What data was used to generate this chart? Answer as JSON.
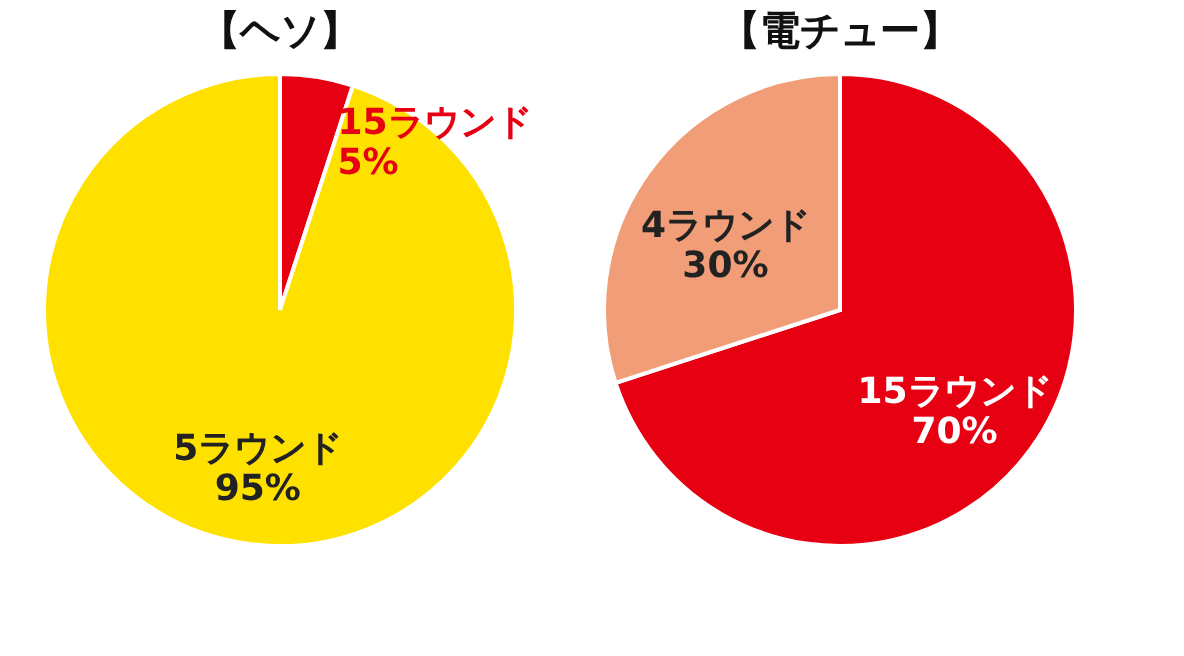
{
  "chart_data": [
    {
      "type": "pie",
      "title": "【ヘソ】",
      "categories": [
        "15ラウンド",
        "5ラウンド"
      ],
      "values": [
        5,
        95
      ],
      "value_labels": [
        "5%",
        "95%"
      ],
      "colors": [
        "#e60012",
        "#ffe100"
      ],
      "legend": false
    },
    {
      "type": "pie",
      "title": "【電チュー】",
      "categories": [
        "15ラウンド",
        "4ラウンド"
      ],
      "values": [
        70,
        30
      ],
      "value_labels": [
        "70%",
        "30%"
      ],
      "colors": [
        "#e60012",
        "#f19e78"
      ],
      "legend": false
    }
  ]
}
